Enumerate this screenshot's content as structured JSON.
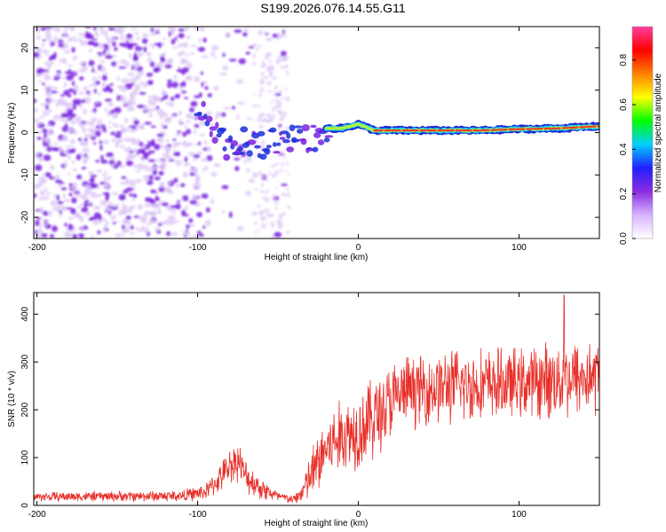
{
  "title": "S199.2026.076.14.55.G11",
  "colors": {
    "snr_line": "#e8302a",
    "dots_light": "#d9c2f5",
    "dots_dark": "#7a22e0",
    "ridge_outer": "#1c2fd8",
    "ridge_mid": "#19d7e6",
    "ridge_core": "#ee3a2a",
    "axis": "#000000"
  },
  "chart_data": [
    {
      "type": "heatmap",
      "xlabel": "Height of straight line (km)",
      "ylabel": "Frequency (Hz)",
      "xlim": [
        -202,
        150
      ],
      "ylim": [
        -25,
        25
      ],
      "xticks": [
        -200,
        -100,
        0,
        100
      ],
      "yticks": [
        20,
        10,
        0,
        -10,
        -20
      ],
      "ridge": {
        "x": [
          -100,
          -90,
          -80,
          -70,
          -60,
          -50,
          -40,
          -30,
          -20,
          -10,
          0,
          10,
          25,
          50,
          75,
          100,
          125,
          150
        ],
        "freq": [
          6,
          0,
          -4,
          -2,
          -3,
          -2,
          -1,
          -2,
          1,
          1,
          2,
          0.5,
          0.5,
          0.5,
          0.5,
          0.8,
          1,
          1.5
        ]
      },
      "colorbar": {
        "label": "Normalized spectral amplitude",
        "ticks": [
          0.0,
          0.2,
          0.4,
          0.6,
          0.8
        ],
        "range": [
          0,
          0.95
        ],
        "stops": [
          "#ffffff",
          "#d8b4ff",
          "#8a2be2",
          "#2020ff",
          "#00cfff",
          "#00ff00",
          "#ffff00",
          "#ff7f00",
          "#ff0000",
          "#ff3fa0"
        ]
      }
    },
    {
      "type": "line",
      "xlabel": "Height of straight line (km)",
      "ylabel": "SNR (10 * v/v)",
      "xlim": [
        -202,
        150
      ],
      "ylim": [
        0,
        445
      ],
      "xticks": [
        -200,
        -100,
        0,
        100
      ],
      "yticks": [
        0,
        100,
        200,
        300,
        400
      ],
      "envelope": {
        "x": [
          -202,
          -110,
          -95,
          -85,
          -80,
          -75,
          -70,
          -60,
          -50,
          -40,
          -35,
          -28,
          -20,
          -10,
          0,
          10,
          20,
          30,
          60,
          100,
          130,
          150
        ],
        "mean": [
          18,
          20,
          28,
          60,
          85,
          95,
          60,
          35,
          18,
          12,
          28,
          70,
          120,
          145,
          160,
          185,
          215,
          240,
          250,
          255,
          265,
          270
        ],
        "spread": [
          8,
          10,
          14,
          25,
          30,
          35,
          28,
          20,
          10,
          8,
          20,
          50,
          60,
          65,
          70,
          75,
          70,
          60,
          65,
          60,
          70,
          65
        ]
      },
      "peak": {
        "x": 128,
        "y": 440
      }
    }
  ]
}
